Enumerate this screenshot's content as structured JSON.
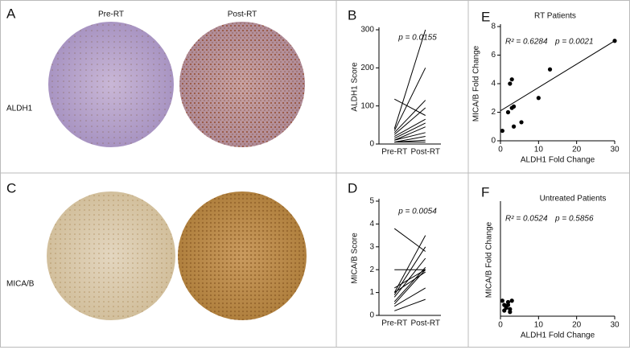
{
  "images": {
    "letters": [
      "A",
      "C"
    ],
    "columns": [
      "Pre-RT",
      "Post-RT"
    ],
    "rows": [
      "ALDH1",
      "MICA/B"
    ]
  },
  "chart_data": [
    {
      "type": "line",
      "label": "B",
      "ylabel": "ALDH1 Score",
      "annotation": "p = 0.0155",
      "categories": [
        "Pre-RT",
        "Post-RT"
      ],
      "color": "#000000",
      "ylim": [
        0,
        300
      ],
      "yticks": [
        0,
        100,
        200,
        300
      ],
      "series": [
        {
          "values": [
            118,
            75
          ]
        },
        {
          "values": [
            40,
            300
          ]
        },
        {
          "values": [
            35,
            200
          ]
        },
        {
          "values": [
            30,
            115
          ]
        },
        {
          "values": [
            25,
            95
          ]
        },
        {
          "values": [
            20,
            65
          ]
        },
        {
          "values": [
            15,
            55
          ]
        },
        {
          "values": [
            10,
            45
          ]
        },
        {
          "values": [
            10,
            30
          ]
        },
        {
          "values": [
            5,
            20
          ]
        },
        {
          "values": [
            5,
            10
          ]
        },
        {
          "values": [
            5,
            5
          ]
        }
      ]
    },
    {
      "type": "line",
      "label": "D",
      "ylabel": "MICA/B Score",
      "annotation": "p = 0.0054",
      "categories": [
        "Pre-RT",
        "Post-RT"
      ],
      "color": "#000000",
      "ylim": [
        0,
        5
      ],
      "yticks": [
        0,
        1,
        2,
        3,
        4,
        5
      ],
      "series": [
        {
          "values": [
            3.8,
            2.8
          ]
        },
        {
          "values": [
            2,
            2
          ]
        },
        {
          "values": [
            1.0,
            3.5
          ]
        },
        {
          "values": [
            0.9,
            3.0
          ]
        },
        {
          "values": [
            0.8,
            2.5
          ]
        },
        {
          "values": [
            0.6,
            2.1
          ]
        },
        {
          "values": [
            0.5,
            2.0
          ]
        },
        {
          "values": [
            1.0,
            1.9
          ]
        },
        {
          "values": [
            0.4,
            1.2
          ]
        },
        {
          "values": [
            0.2,
            0.7
          ]
        },
        {
          "values": [
            1.2,
            2.0
          ]
        }
      ]
    },
    {
      "type": "scatter",
      "label": "E",
      "title": "RT Patients",
      "annotations": [
        "R² = 0.6284",
        "p = 0.0021"
      ],
      "xlabel": "ALDH1 Fold Change",
      "ylabel": "MICA/B Fold Change",
      "color": "#000000",
      "xlim": [
        0,
        30
      ],
      "xticks": [
        0,
        10,
        20,
        30
      ],
      "ylim": [
        0,
        8
      ],
      "yticks": [
        0,
        2,
        4,
        6,
        8
      ],
      "x": [
        0.5,
        2,
        2.5,
        3,
        3.5,
        3,
        3.5,
        5.5,
        10,
        13,
        30
      ],
      "values": [
        0.7,
        2,
        4,
        2.3,
        2.4,
        4.3,
        1,
        1.3,
        3,
        5,
        7
      ],
      "fit": {
        "x": [
          0,
          30
        ],
        "values": [
          2.1,
          7
        ]
      }
    },
    {
      "type": "scatter",
      "label": "F",
      "title": "Untreated Patients",
      "annotations": [
        "R² = 0.0524",
        "p = 0.5856"
      ],
      "xlabel": "ALDH1 Fold Change",
      "ylabel": "MICA/B Fold Change",
      "color": "#000000",
      "xlim": [
        0,
        30
      ],
      "xticks": [
        0,
        10,
        20,
        30
      ],
      "ylim": [
        0,
        8
      ],
      "x": [
        0.5,
        1,
        1.5,
        2,
        2.5,
        1,
        2,
        3,
        2.5
      ],
      "values": [
        1.1,
        0.8,
        0.6,
        1.0,
        0.3,
        0.4,
        0.8,
        1.1,
        0.5
      ]
    }
  ]
}
